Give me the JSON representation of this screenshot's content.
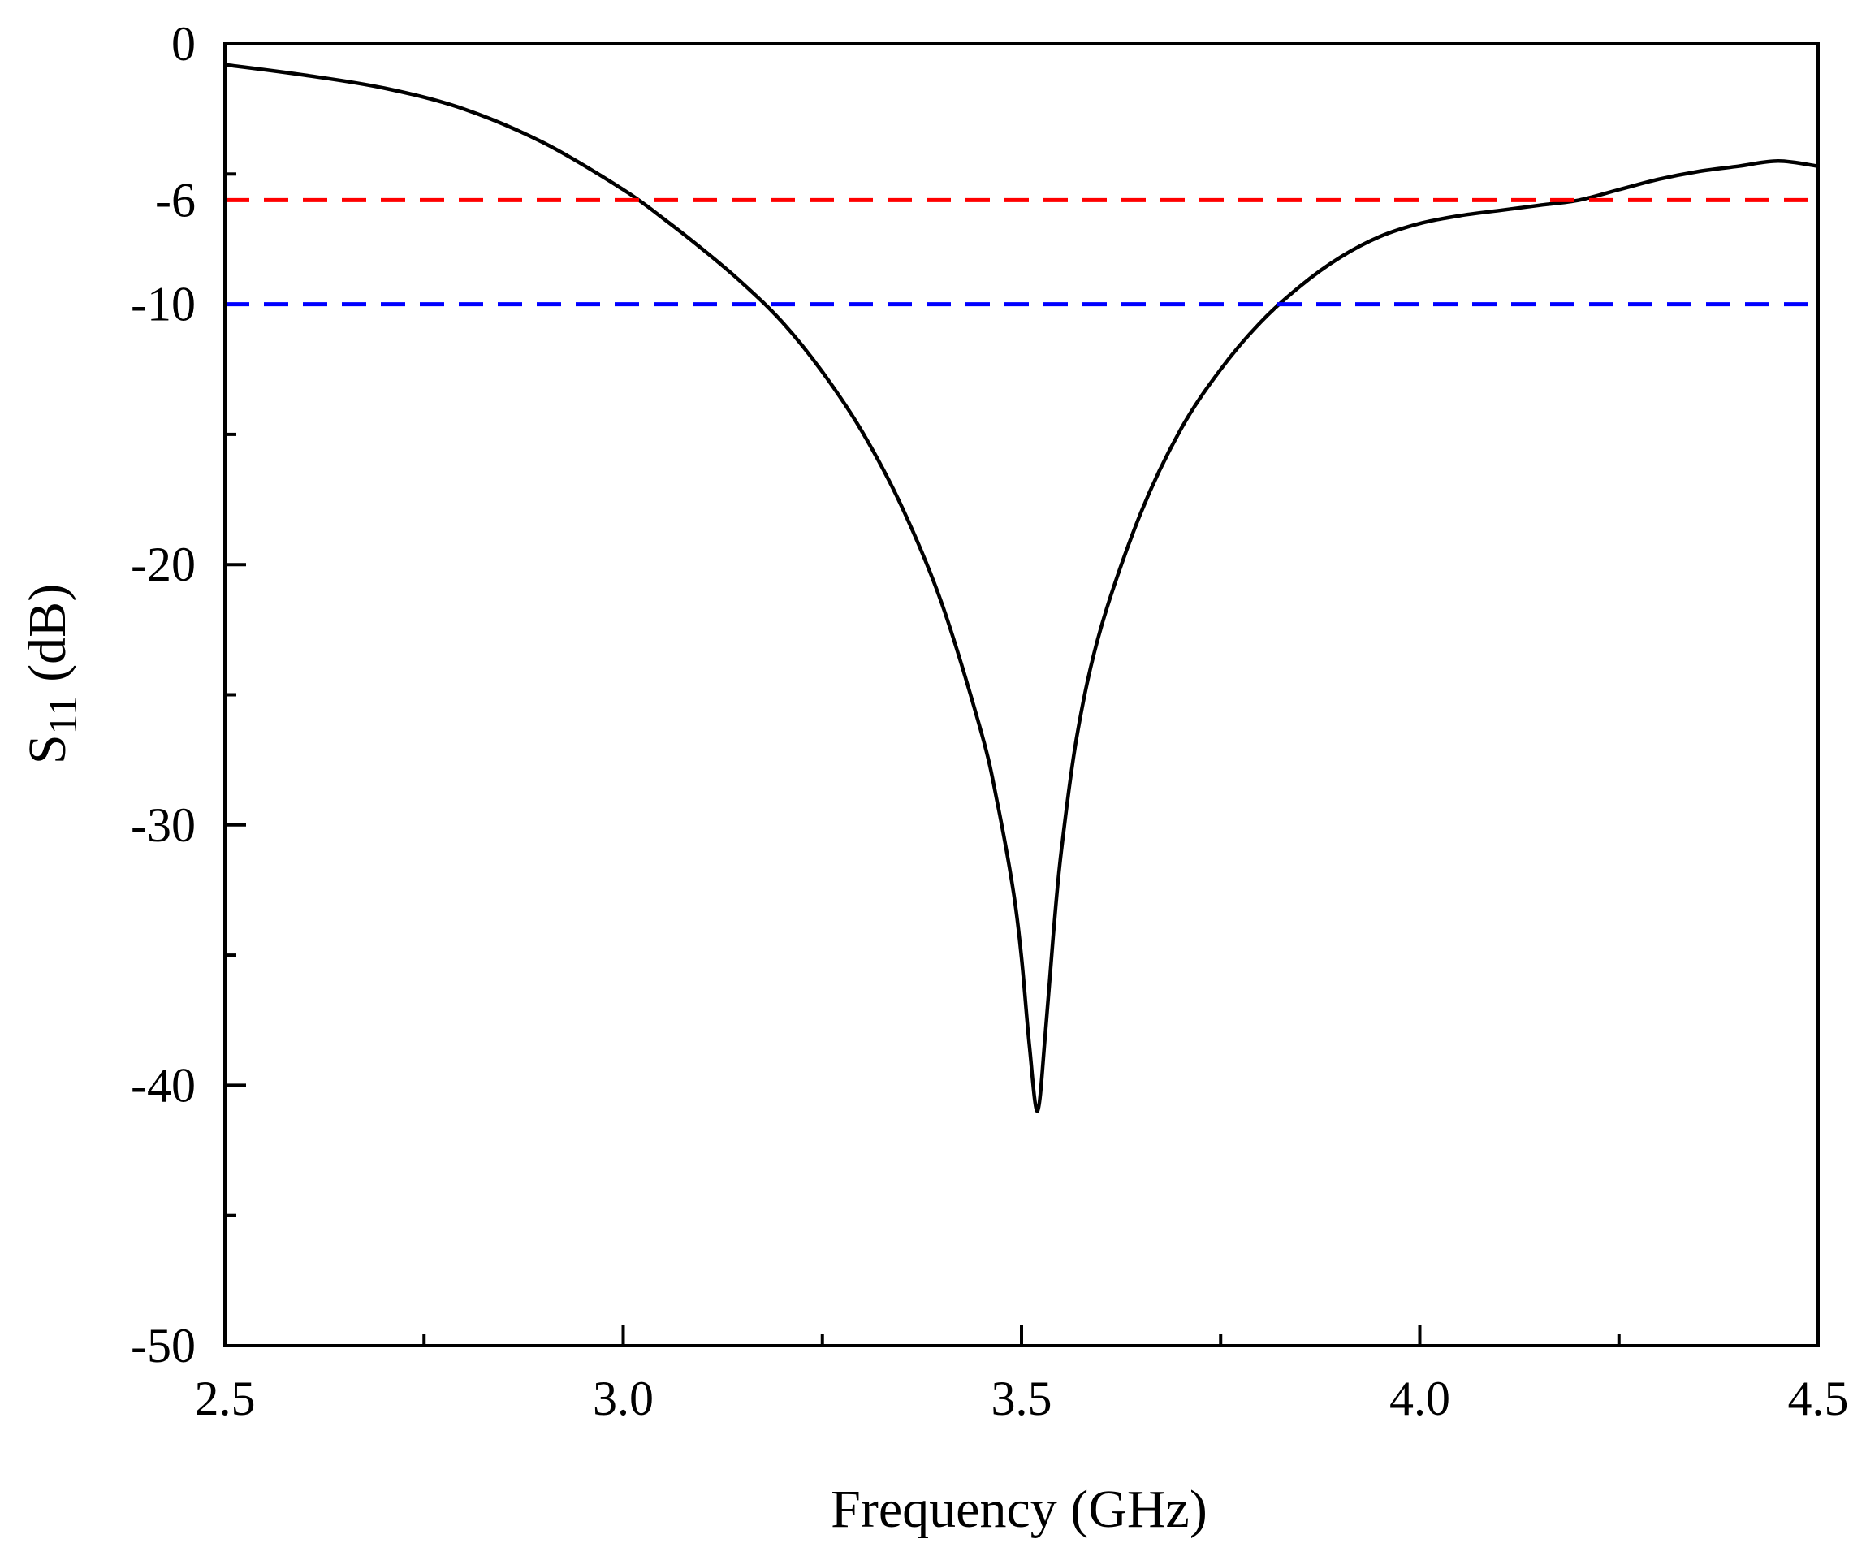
{
  "chart_data": {
    "type": "line",
    "title": "",
    "xlabel": "Frequency (GHz)",
    "ylabel": "S",
    "ylabel_subscript": "11",
    "ylabel_unit": " (dB)",
    "xlim": [
      2.5,
      4.5
    ],
    "ylim": [
      -50,
      0
    ],
    "x_major_ticks": [
      2.5,
      3.0,
      3.5,
      4.0,
      4.5
    ],
    "x_tick_labels": [
      "2.5",
      "3.0",
      "3.5",
      "4.0",
      "4.5"
    ],
    "x_minor_ticks": [
      2.75,
      3.25,
      3.75,
      4.25
    ],
    "y_major_ticks": [
      0,
      -6,
      -10,
      -20,
      -30,
      -40,
      -50
    ],
    "y_tick_labels": [
      "0",
      "-6",
      "-10",
      "-20",
      "-30",
      "-40",
      "-50"
    ],
    "y_minor_ticks": [
      -5,
      -15,
      -25,
      -35,
      -45
    ],
    "grid": false,
    "series": [
      {
        "color": "#000000",
        "style": "solid",
        "x": [
          2.5,
          2.6,
          2.7,
          2.8,
          2.9,
          3.0,
          3.05,
          3.1,
          3.15,
          3.2,
          3.25,
          3.3,
          3.35,
          3.4,
          3.45,
          3.47,
          3.49,
          3.5,
          3.51,
          3.52,
          3.53,
          3.54,
          3.55,
          3.57,
          3.6,
          3.65,
          3.7,
          3.75,
          3.8,
          3.85,
          3.9,
          3.95,
          4.0,
          4.05,
          4.1,
          4.15,
          4.2,
          4.25,
          4.3,
          4.35,
          4.4,
          4.45,
          4.5
        ],
        "y": [
          -0.8,
          -1.2,
          -1.7,
          -2.5,
          -3.8,
          -5.6,
          -6.7,
          -7.9,
          -9.2,
          -10.7,
          -12.6,
          -14.9,
          -17.8,
          -21.5,
          -26.5,
          -29.2,
          -32.6,
          -35.1,
          -38.5,
          -41.0,
          -38.0,
          -34.2,
          -31.0,
          -26.5,
          -22.4,
          -18.0,
          -14.8,
          -12.5,
          -10.7,
          -9.3,
          -8.2,
          -7.4,
          -6.9,
          -6.6,
          -6.4,
          -6.2,
          -6.0,
          -5.6,
          -5.2,
          -4.9,
          -4.7,
          -4.5,
          -4.7
        ]
      },
      {
        "color": "#ff0000",
        "style": "dashed",
        "x": [
          2.5,
          4.5
        ],
        "y": [
          -6,
          -6
        ]
      },
      {
        "color": "#0000ff",
        "style": "dashed",
        "x": [
          2.5,
          4.5
        ],
        "y": [
          -10,
          -10
        ]
      }
    ]
  }
}
